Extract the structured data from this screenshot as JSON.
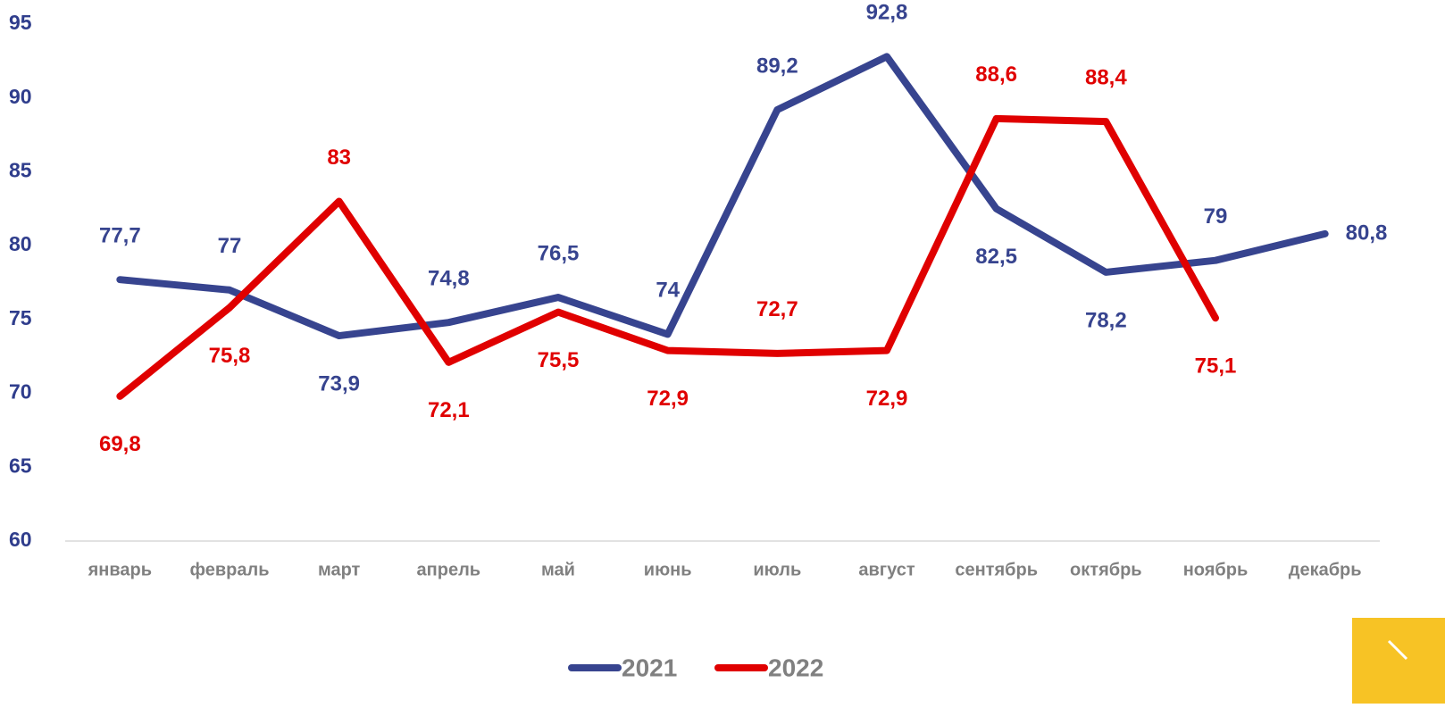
{
  "chart_data": {
    "type": "line",
    "categories": [
      "январь",
      "февраль",
      "март",
      "апрель",
      "май",
      "июнь",
      "июль",
      "август",
      "сентябрь",
      "октябрь",
      "ноябрь",
      "декабрь"
    ],
    "series": [
      {
        "name": "2021",
        "color": "#37448f",
        "values": [
          77.7,
          77,
          73.9,
          74.8,
          76.5,
          74,
          89.2,
          92.8,
          82.5,
          78.2,
          79,
          80.8
        ],
        "value_labels": [
          "77,7",
          "77",
          "73,9",
          "74,8",
          "76,5",
          "74",
          "89,2",
          "92,8",
          "82,5",
          "78,2",
          "79",
          "80,8"
        ]
      },
      {
        "name": "2022",
        "color": "#e00000",
        "values": [
          69.8,
          75.8,
          83,
          72.1,
          75.5,
          72.9,
          72.7,
          72.9,
          88.6,
          88.4,
          75.1,
          null
        ],
        "value_labels": [
          "69,8",
          "75,8",
          "83",
          "72,1",
          "75,5",
          "72,9",
          "72,7",
          "72,9",
          "88,6",
          "88,4",
          "75,1",
          null
        ]
      }
    ],
    "ylim": [
      60,
      95
    ],
    "yticks": [
      60,
      65,
      70,
      75,
      80,
      85,
      90,
      95
    ],
    "legend": "bottom"
  }
}
